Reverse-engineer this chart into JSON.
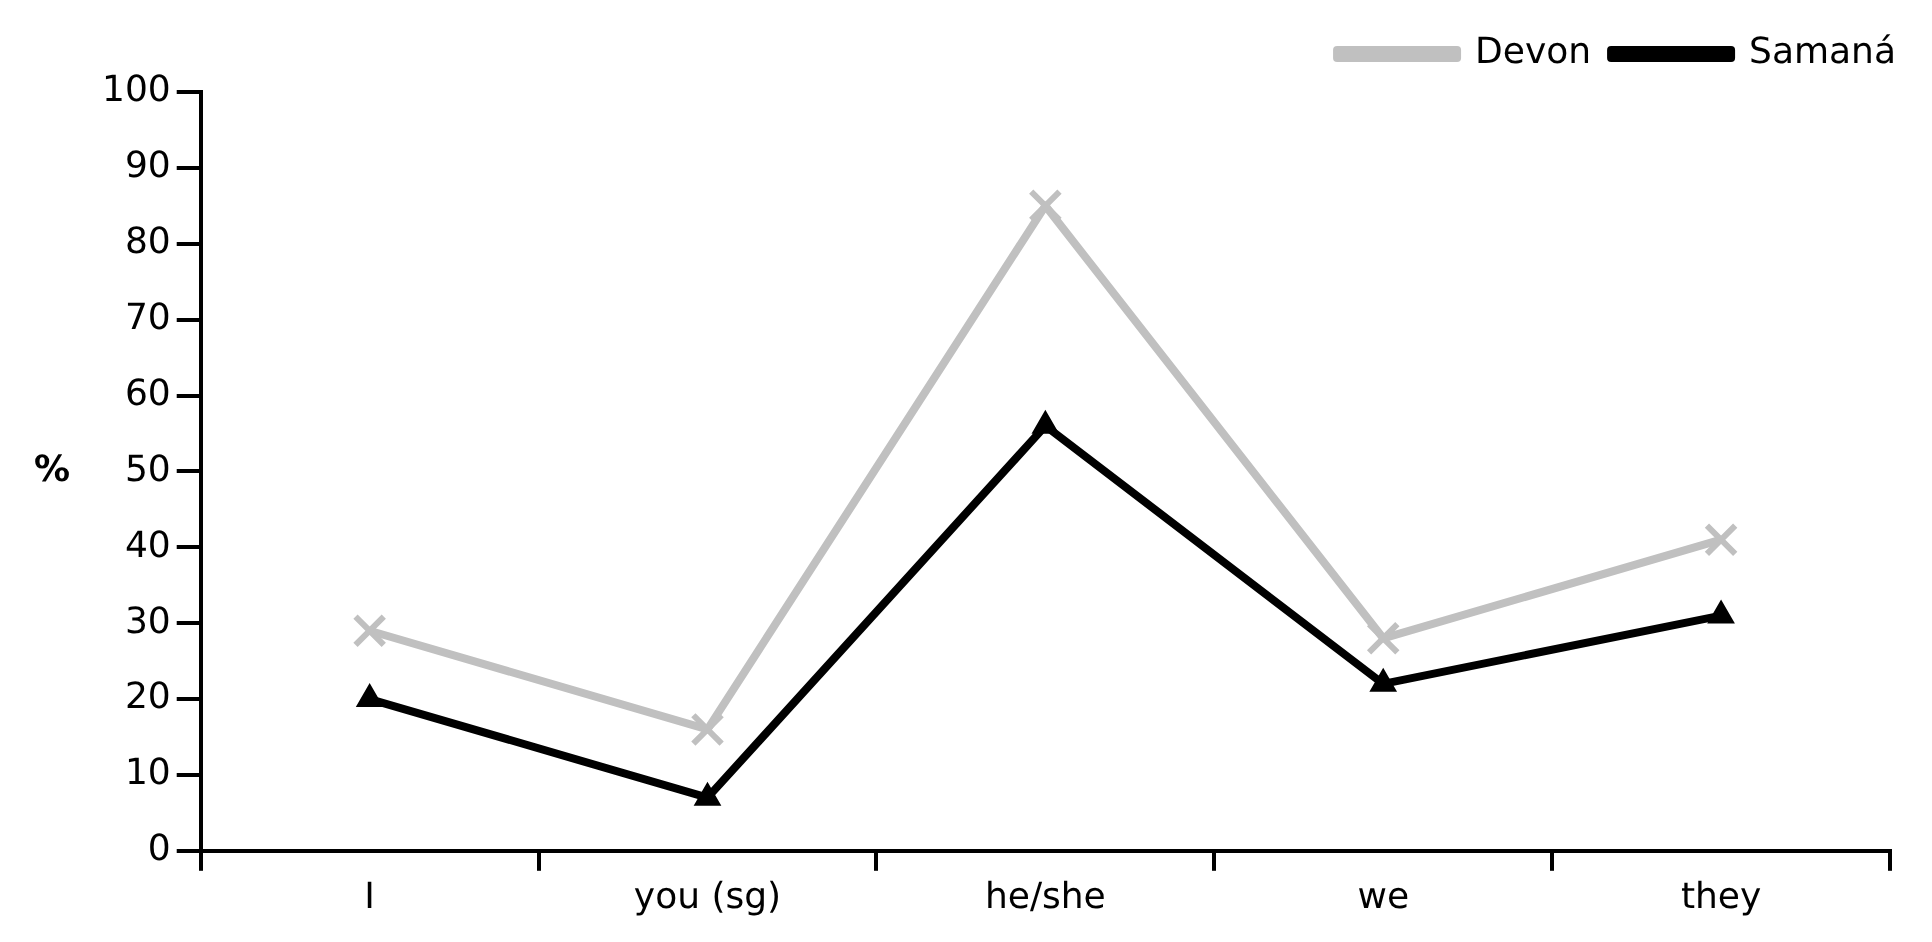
{
  "chart_data": {
    "type": "line",
    "ylabel": "%",
    "categories": [
      "I",
      "you (sg)",
      "he/she",
      "we",
      "they"
    ],
    "series": [
      {
        "name": "Devon",
        "color": "#c0c0c0",
        "marker": "cross",
        "values": [
          29,
          16,
          85,
          28,
          41
        ]
      },
      {
        "name": "Samaná",
        "color": "#000000",
        "marker": "triangle",
        "values": [
          20,
          7,
          56,
          22,
          31
        ]
      }
    ],
    "ylim": [
      0,
      100
    ],
    "yticks": [
      0,
      10,
      20,
      30,
      40,
      50,
      60,
      70,
      80,
      90,
      100
    ],
    "grid": false,
    "legend": "top right",
    "line_style": "solid"
  }
}
